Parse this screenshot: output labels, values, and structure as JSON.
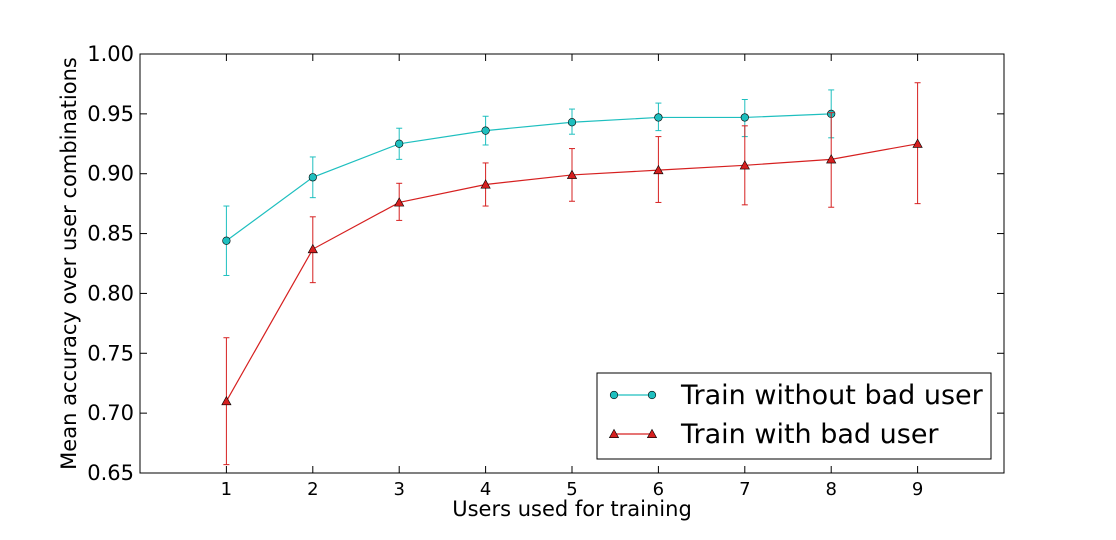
{
  "chart_data": {
    "type": "line",
    "title": "",
    "xlabel": "Users used for training",
    "ylabel": "Mean accuracy over user combinations",
    "xlim": [
      0,
      10
    ],
    "ylim": [
      0.65,
      1.0
    ],
    "xticks": [
      1,
      2,
      3,
      4,
      5,
      6,
      7,
      8,
      9
    ],
    "yticks": [
      0.65,
      0.7,
      0.75,
      0.8,
      0.85,
      0.9,
      0.95,
      1.0
    ],
    "ytick_labels": [
      "0.65",
      "0.70",
      "0.75",
      "0.80",
      "0.85",
      "0.90",
      "0.95",
      "1.00"
    ],
    "grid": false,
    "legend_position": "lower-right",
    "series": [
      {
        "name": "Train without bad user",
        "color": "#1ebfbf",
        "marker": "circle",
        "x": [
          1,
          2,
          3,
          4,
          5,
          6,
          7,
          8
        ],
        "y": [
          0.844,
          0.897,
          0.925,
          0.936,
          0.943,
          0.947,
          0.947,
          0.95
        ],
        "err_low": [
          0.815,
          0.88,
          0.912,
          0.924,
          0.933,
          0.936,
          0.931,
          0.93
        ],
        "err_high": [
          0.873,
          0.914,
          0.938,
          0.948,
          0.954,
          0.959,
          0.962,
          0.97
        ]
      },
      {
        "name": "Train with bad user",
        "color": "#d62020",
        "marker": "triangle",
        "x": [
          1,
          2,
          3,
          4,
          5,
          6,
          7,
          8,
          9
        ],
        "y": [
          0.71,
          0.837,
          0.876,
          0.891,
          0.899,
          0.903,
          0.907,
          0.912,
          0.925
        ],
        "err_low": [
          0.657,
          0.809,
          0.861,
          0.873,
          0.877,
          0.876,
          0.874,
          0.872,
          0.875
        ],
        "err_high": [
          0.763,
          0.864,
          0.892,
          0.909,
          0.921,
          0.931,
          0.94,
          0.951,
          0.976
        ]
      }
    ]
  }
}
